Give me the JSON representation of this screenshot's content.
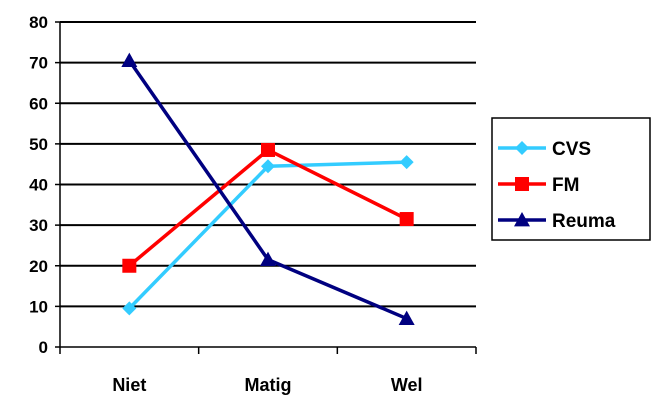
{
  "chart_data": {
    "type": "line",
    "categories": [
      "Niet",
      "Matig",
      "Wel"
    ],
    "series": [
      {
        "name": "CVS",
        "values": [
          9.5,
          44.5,
          45.5
        ],
        "color": "#33CCFF",
        "marker": "diamond"
      },
      {
        "name": "FM",
        "values": [
          20,
          48.5,
          31.5
        ],
        "color": "#FF0000",
        "marker": "square"
      },
      {
        "name": "Reuma",
        "values": [
          70.5,
          21.5,
          7
        ],
        "color": "#000080",
        "marker": "triangle"
      }
    ],
    "ylim": [
      0,
      80
    ],
    "yticks": [
      0,
      10,
      20,
      30,
      40,
      50,
      60,
      70,
      80
    ],
    "grid": true,
    "legend": "right"
  }
}
